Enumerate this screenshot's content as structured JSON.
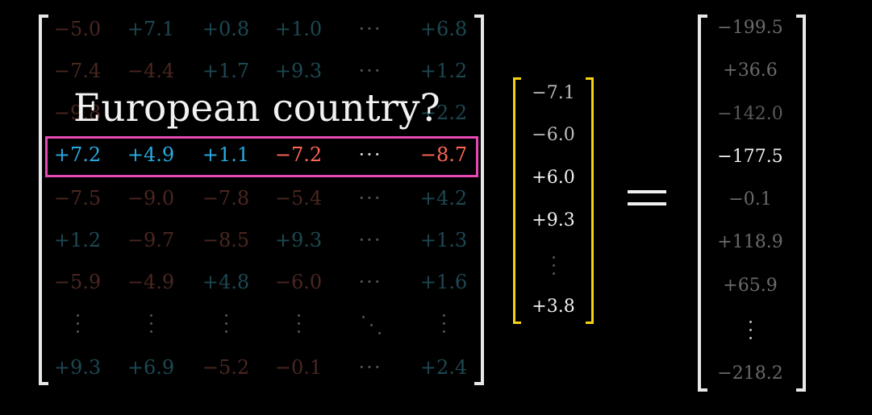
{
  "matrix": {
    "rows": [
      [
        "−5.0",
        "+7.1",
        "+0.8",
        "+1.0",
        "···",
        "+6.8"
      ],
      [
        "−7.4",
        "−4.4",
        "+1.7",
        "+9.3",
        "···",
        "+1.2"
      ],
      [
        "−9.8",
        "",
        "",
        "",
        "",
        "+2.2"
      ],
      [
        "+7.2",
        "+4.9",
        "+1.1",
        "−7.2",
        "···",
        "−8.7"
      ],
      [
        "−7.5",
        "−9.0",
        "−7.8",
        "−5.4",
        "···",
        "+4.2"
      ],
      [
        "+1.2",
        "−9.7",
        "−8.5",
        "+9.3",
        "···",
        "+1.3"
      ],
      [
        "−5.9",
        "−4.9",
        "+4.8",
        "−6.0",
        "···",
        "+1.6"
      ],
      [
        "+9.3",
        "+6.9",
        "−5.2",
        "−0.1",
        "···",
        "+2.4"
      ]
    ],
    "highlight_row": 3
  },
  "question": "European country?",
  "input_vector": [
    "−7.1",
    "−6.0",
    "+6.0",
    "+9.3",
    "+3.8"
  ],
  "equals_symbol": "=",
  "output_vector": [
    "−199.5",
    "+36.6",
    "−142.0",
    "−177.5",
    "−0.1",
    "+118.9",
    "+65.9",
    "−218.2"
  ],
  "output_highlight_index": 3,
  "colors": {
    "highlight_box": "#e648b4",
    "input_bracket": "#f4d217",
    "positive": "#29abe2",
    "negative": "#ff6655"
  }
}
